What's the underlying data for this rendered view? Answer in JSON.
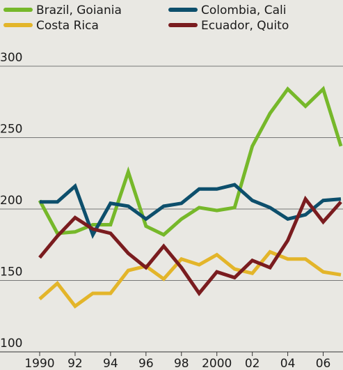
{
  "chart_data": {
    "type": "line",
    "x": [
      1990,
      1991,
      1992,
      1993,
      1994,
      1995,
      1996,
      1997,
      1998,
      1999,
      2000,
      2001,
      2002,
      2003,
      2004,
      2005,
      2006,
      2007
    ],
    "series": [
      {
        "name": "Brazil, Goiania",
        "color": "#76b82a",
        "values": [
          206,
          183,
          184,
          189,
          189,
          226,
          188,
          182,
          193,
          201,
          199,
          201,
          244,
          267,
          284,
          272,
          284,
          244
        ]
      },
      {
        "name": "Colombia, Cali",
        "color": "#0d4f6c",
        "values": [
          205,
          205,
          216,
          182,
          204,
          202,
          193,
          202,
          204,
          214,
          214,
          217,
          206,
          201,
          193,
          196,
          206,
          207
        ]
      },
      {
        "name": "Costa Rica",
        "color": "#e3b52a",
        "values": [
          137,
          148,
          132,
          141,
          141,
          157,
          160,
          151,
          165,
          161,
          168,
          158,
          155,
          170,
          165,
          165,
          156,
          154
        ]
      },
      {
        "name": "Ecuador, Quito",
        "color": "#7a1c1f",
        "values": [
          166,
          181,
          194,
          186,
          183,
          169,
          159,
          174,
          159,
          141,
          156,
          152,
          164,
          159,
          178,
          207,
          191,
          205
        ]
      }
    ],
    "xlim": [
      1990,
      2007
    ],
    "xticks": [
      1990,
      {
        "value": 1992,
        "label": "92"
      },
      {
        "value": 1994,
        "label": "94"
      },
      {
        "value": 1996,
        "label": "96"
      },
      {
        "value": 1998,
        "label": "98"
      },
      2000,
      {
        "value": 2002,
        "label": "02"
      },
      {
        "value": 2004,
        "label": "04"
      },
      {
        "value": 2006,
        "label": "06"
      }
    ],
    "ylim": [
      100,
      300
    ],
    "yticks": [
      100,
      150,
      200,
      250,
      300
    ],
    "grid": true,
    "legend": "top"
  }
}
